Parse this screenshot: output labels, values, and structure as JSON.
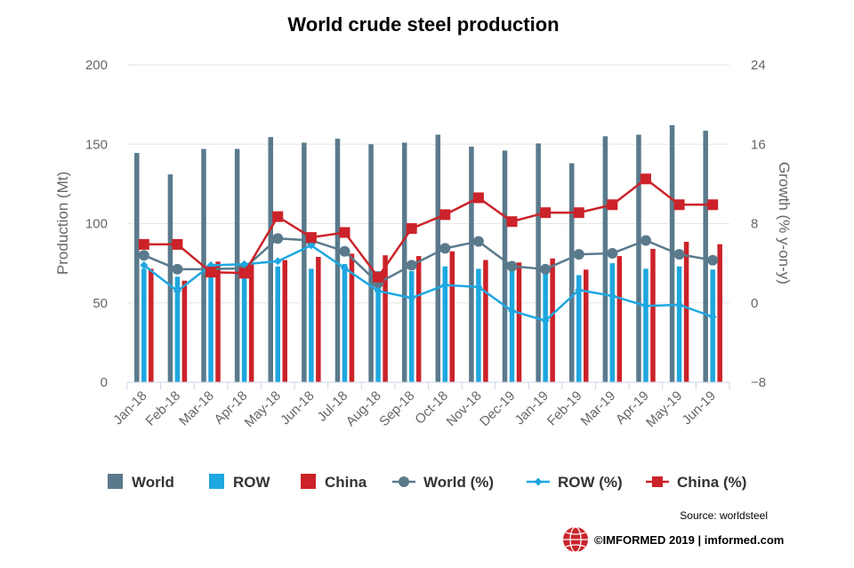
{
  "chart_data": {
    "type": "bar",
    "title": "World crude steel production",
    "categories": [
      "Jan-18",
      "Feb-18",
      "Mar-18",
      "Apr-18",
      "May-18",
      "Jun-18",
      "Jul-18",
      "Aug-18",
      "Sep-18",
      "Oct-18",
      "Nov-18",
      "Dec-19",
      "Jan-19",
      "Feb-19",
      "Mar-19",
      "Apr-19",
      "May-19",
      "Jun-19"
    ],
    "ylabel": "Production (Mt)",
    "ylim": [
      0,
      200
    ],
    "yticks": [
      0,
      50,
      100,
      150,
      200
    ],
    "y2label": "Growth (% y-on-y)",
    "y2lim": [
      -8,
      24
    ],
    "y2ticks": [
      "−8",
      "0",
      "8",
      "16",
      "24"
    ],
    "y2tick_values": [
      -8,
      0,
      8,
      16,
      24
    ],
    "bar_series": [
      {
        "name": "World",
        "color": "#5a7a8c",
        "values": [
          144.5,
          131,
          147,
          147,
          154.5,
          151,
          153.5,
          150,
          151,
          156,
          148.5,
          146,
          150.5,
          138,
          155,
          156,
          162,
          158.5
        ]
      },
      {
        "name": "ROW",
        "color": "#1ea7e0",
        "values": [
          71.5,
          66.5,
          71,
          71,
          73,
          71.5,
          74.5,
          70,
          70,
          73,
          71.5,
          70,
          72.5,
          67.5,
          75,
          71.5,
          73,
          71
        ]
      },
      {
        "name": "China",
        "color": "#cc2229",
        "values": [
          71.5,
          64,
          76,
          75,
          77,
          79,
          81,
          80,
          79.5,
          82.5,
          77,
          75.5,
          78,
          71,
          79.5,
          84,
          88.5,
          87
        ]
      }
    ],
    "line_series": [
      {
        "name": "World (%)",
        "color": "#5a7a8c",
        "marker": "circle",
        "values": [
          4.8,
          3.4,
          3.4,
          3.5,
          6.5,
          6.3,
          5.2,
          2,
          3.8,
          5.5,
          6.2,
          3.7,
          3.4,
          4.9,
          5,
          6.3,
          4.9,
          4.3
        ]
      },
      {
        "name": "ROW (%)",
        "color": "#1ea7e0",
        "marker": "diamond",
        "values": [
          3.8,
          1.2,
          3.8,
          3.9,
          4.2,
          5.8,
          3.5,
          1.2,
          0.5,
          1.8,
          1.6,
          -0.8,
          -1.8,
          1.3,
          0.7,
          -0.3,
          -0.2,
          -1.4
        ]
      },
      {
        "name": "China (%)",
        "color": "#cc2229",
        "marker": "square",
        "values": [
          5.9,
          5.9,
          3.1,
          3,
          8.7,
          6.6,
          7.1,
          2.6,
          7.5,
          8.9,
          10.6,
          8.2,
          9.1,
          9.1,
          9.9,
          12.5,
          9.9,
          9.9
        ]
      }
    ],
    "legend": {
      "position": "bottom",
      "items": [
        {
          "label": "World",
          "kind": "bar",
          "color": "#5a7a8c"
        },
        {
          "label": "ROW",
          "kind": "bar",
          "color": "#1ea7e0"
        },
        {
          "label": "China",
          "kind": "bar",
          "color": "#cc2229"
        },
        {
          "label": "World (%)",
          "kind": "line",
          "marker": "circle",
          "color": "#5a7a8c"
        },
        {
          "label": "ROW (%)",
          "kind": "line",
          "marker": "diamond",
          "color": "#1ea7e0"
        },
        {
          "label": "China (%)",
          "kind": "line",
          "marker": "square",
          "color": "#cc2229"
        }
      ]
    },
    "grid": true
  },
  "footer": {
    "source": "Source: worldsteel",
    "brand": "©IMFORMED 2019  | imformed.com",
    "logo_icon": "imformed-globe-logo"
  }
}
